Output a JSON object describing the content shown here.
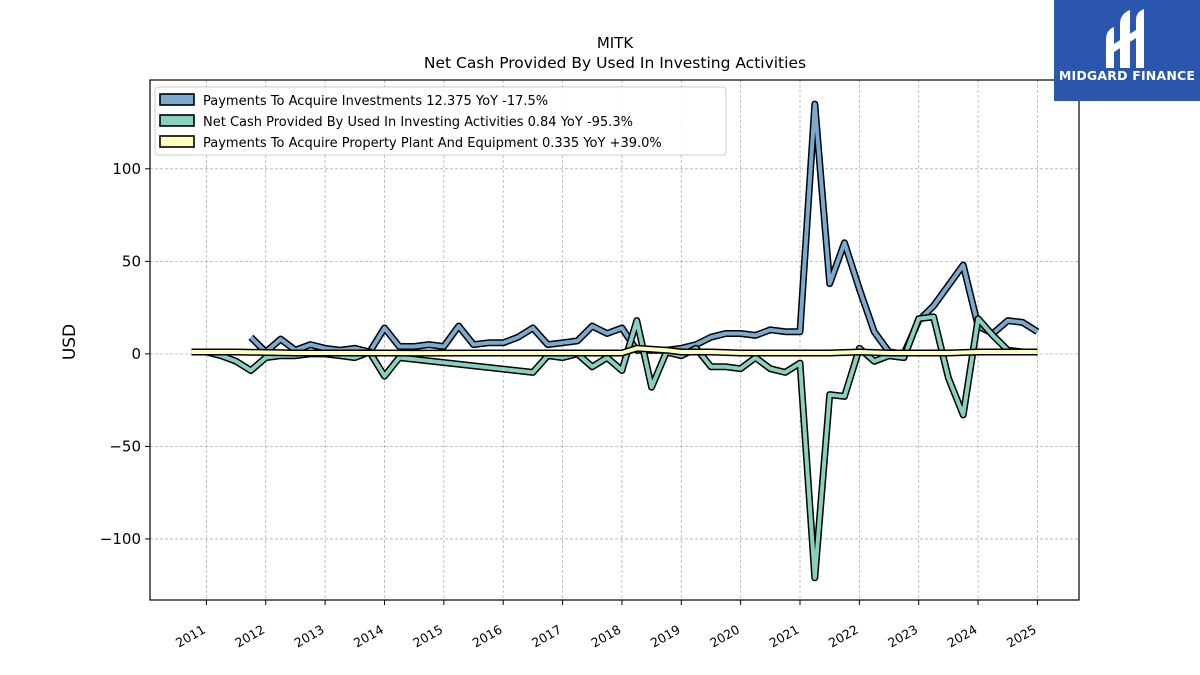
{
  "brand": {
    "name": "MIDGARD FINANCE",
    "bg": "#2a57ad"
  },
  "chart_data": {
    "type": "line",
    "title": "MITK",
    "subtitle": "Net Cash Provided By Used In Investing Activities",
    "ylabel": "USD",
    "xlabel": "",
    "xlim": [
      2010.05,
      2025.7
    ],
    "ylim": [
      -133,
      148
    ],
    "yticks": [
      -100,
      -50,
      0,
      50,
      100
    ],
    "ytick_labels": [
      "−100",
      "−50",
      "0",
      "50",
      "100"
    ],
    "xticks": [
      2011,
      2012,
      2013,
      2014,
      2015,
      2016,
      2017,
      2018,
      2019,
      2020,
      2021,
      2022,
      2023,
      2024,
      2025
    ],
    "xtick_labels": [
      "2011",
      "2012",
      "2013",
      "2014",
      "2015",
      "2016",
      "2017",
      "2018",
      "2019",
      "2020",
      "2021",
      "2022",
      "2023",
      "2024",
      "2025"
    ],
    "grid": true,
    "legend_position": "top-left",
    "series": [
      {
        "name": "Payments To Acquire Investments",
        "legend_label": "Payments To Acquire Investments  12.375 YoY -17.5%",
        "color": "#7aaad0",
        "points": [
          [
            2011.75,
            9
          ],
          [
            2012.0,
            1
          ],
          [
            2012.25,
            8
          ],
          [
            2012.5,
            2
          ],
          [
            2012.75,
            5
          ],
          [
            2013.0,
            3
          ],
          [
            2013.25,
            2
          ],
          [
            2013.5,
            3
          ],
          [
            2013.75,
            1
          ],
          [
            2014.0,
            14
          ],
          [
            2014.25,
            4
          ],
          [
            2014.5,
            4
          ],
          [
            2014.75,
            5
          ],
          [
            2015.0,
            4
          ],
          [
            2015.25,
            15
          ],
          [
            2015.5,
            5
          ],
          [
            2015.75,
            6
          ],
          [
            2016.0,
            6
          ],
          [
            2016.25,
            9
          ],
          [
            2016.5,
            14
          ],
          [
            2016.75,
            5
          ],
          [
            2017.0,
            6
          ],
          [
            2017.25,
            7
          ],
          [
            2017.5,
            15
          ],
          [
            2017.75,
            11
          ],
          [
            2018.0,
            14
          ],
          [
            2018.25,
            2
          ],
          [
            2018.5,
            2
          ],
          [
            2018.75,
            2
          ],
          [
            2019.0,
            3
          ],
          [
            2019.25,
            5
          ],
          [
            2019.5,
            9
          ],
          [
            2019.75,
            11
          ],
          [
            2020.0,
            11
          ],
          [
            2020.25,
            10
          ],
          [
            2020.5,
            13
          ],
          [
            2020.75,
            12
          ],
          [
            2021.0,
            12
          ],
          [
            2021.25,
            135
          ],
          [
            2021.5,
            38
          ],
          [
            2021.75,
            60
          ],
          [
            2022.0,
            35
          ],
          [
            2022.25,
            12
          ],
          [
            2022.5,
            1
          ],
          [
            2022.75,
            0
          ],
          [
            2023.0,
            18
          ],
          [
            2023.25,
            26
          ],
          [
            2023.5,
            37
          ],
          [
            2023.75,
            48
          ],
          [
            2024.0,
            15
          ],
          [
            2024.25,
            11
          ],
          [
            2024.5,
            18
          ],
          [
            2024.75,
            17
          ],
          [
            2025.0,
            12
          ]
        ]
      },
      {
        "name": "Net Cash Provided By Used In Investing Activities",
        "legend_label": "Net Cash Provided By Used In Investing Activities  0.84 YoY -95.3%",
        "color": "#88d0c0",
        "points": [
          [
            2010.75,
            1
          ],
          [
            2011.0,
            1
          ],
          [
            2011.25,
            -1
          ],
          [
            2011.5,
            -4
          ],
          [
            2011.75,
            -9
          ],
          [
            2012.0,
            -2
          ],
          [
            2012.25,
            -1
          ],
          [
            2012.5,
            -1
          ],
          [
            2012.75,
            0
          ],
          [
            2013.0,
            0
          ],
          [
            2013.25,
            -1
          ],
          [
            2013.5,
            -2
          ],
          [
            2013.75,
            1
          ],
          [
            2014.0,
            -12
          ],
          [
            2014.25,
            -2
          ],
          [
            2016.5,
            -10
          ],
          [
            2016.75,
            -1
          ],
          [
            2017.0,
            -2
          ],
          [
            2017.25,
            0
          ],
          [
            2017.5,
            -7
          ],
          [
            2017.75,
            -2
          ],
          [
            2018.0,
            -9
          ],
          [
            2018.25,
            18
          ],
          [
            2018.5,
            -18
          ],
          [
            2018.75,
            1
          ],
          [
            2019.0,
            -1
          ],
          [
            2019.25,
            3
          ],
          [
            2019.5,
            -7
          ],
          [
            2019.75,
            -7
          ],
          [
            2020.0,
            -8
          ],
          [
            2020.25,
            -2
          ],
          [
            2020.5,
            -8
          ],
          [
            2020.75,
            -10
          ],
          [
            2021.0,
            -5
          ],
          [
            2021.25,
            -121
          ],
          [
            2021.5,
            -22
          ],
          [
            2021.75,
            -23
          ],
          [
            2022.0,
            3
          ],
          [
            2022.25,
            -4
          ],
          [
            2022.5,
            -1
          ],
          [
            2022.75,
            -2
          ],
          [
            2023.0,
            19
          ],
          [
            2023.25,
            20
          ],
          [
            2023.5,
            -13
          ],
          [
            2023.75,
            -33
          ],
          [
            2024.0,
            19
          ],
          [
            2024.25,
            10
          ],
          [
            2024.5,
            2
          ],
          [
            2024.75,
            1
          ],
          [
            2025.0,
            1
          ]
        ]
      },
      {
        "name": "Payments To Acquire Property Plant And Equipment",
        "legend_label": "Payments To Acquire Property Plant And Equipment  0.335 YoY +39.0%",
        "color": "#ffffc0",
        "points": [
          [
            2010.75,
            1
          ],
          [
            2011.5,
            1
          ],
          [
            2012.5,
            0.5
          ],
          [
            2013.5,
            0.5
          ],
          [
            2014.5,
            0.4
          ],
          [
            2015.5,
            0.5
          ],
          [
            2016.5,
            0.5
          ],
          [
            2017.5,
            0.5
          ],
          [
            2018.0,
            0.5
          ],
          [
            2018.25,
            3
          ],
          [
            2018.5,
            2.5
          ],
          [
            2018.75,
            2
          ],
          [
            2019.0,
            1
          ],
          [
            2019.5,
            1
          ],
          [
            2020.0,
            0.5
          ],
          [
            2020.5,
            0.5
          ],
          [
            2021.0,
            0.5
          ],
          [
            2021.5,
            0.5
          ],
          [
            2022.0,
            1
          ],
          [
            2022.5,
            0.5
          ],
          [
            2023.0,
            0.5
          ],
          [
            2023.5,
            0.5
          ],
          [
            2024.0,
            1
          ],
          [
            2024.5,
            1
          ],
          [
            2025.0,
            1
          ]
        ]
      }
    ]
  }
}
